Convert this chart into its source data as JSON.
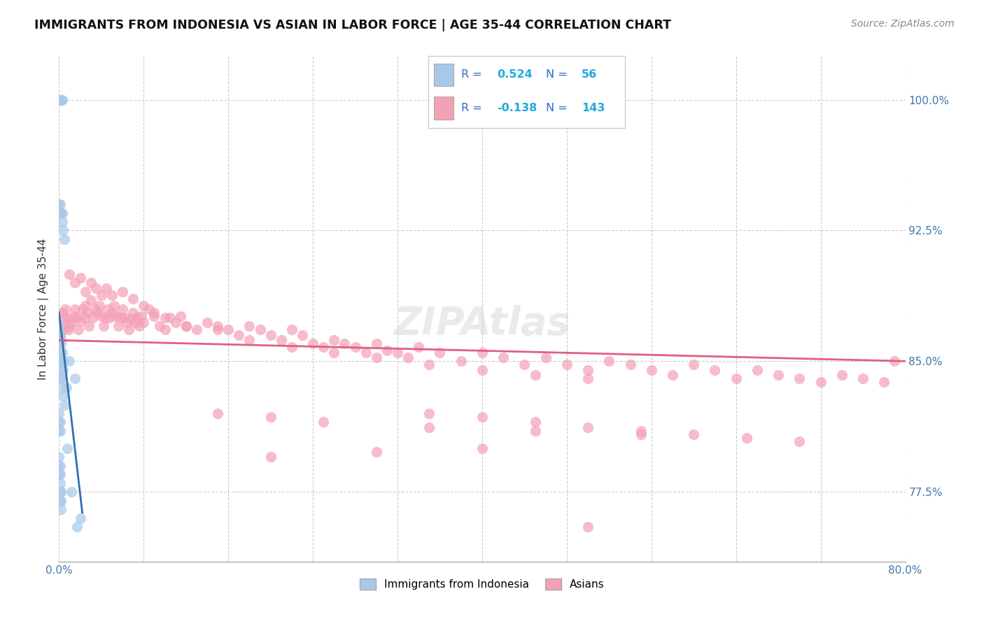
{
  "title": "IMMIGRANTS FROM INDONESIA VS ASIAN IN LABOR FORCE | AGE 35-44 CORRELATION CHART",
  "source": "Source: ZipAtlas.com",
  "ylabel": "In Labor Force | Age 35-44",
  "xlim": [
    0.0,
    0.8
  ],
  "ylim": [
    0.735,
    1.025
  ],
  "xtick_positions": [
    0.0,
    0.08,
    0.16,
    0.24,
    0.32,
    0.4,
    0.48,
    0.56,
    0.64,
    0.72,
    0.8
  ],
  "xtick_labels": [
    "0.0%",
    "",
    "",
    "",
    "",
    "",
    "",
    "",
    "",
    "",
    "80.0%"
  ],
  "ytick_positions": [
    0.775,
    0.85,
    0.925,
    1.0
  ],
  "ytick_labels": [
    "77.5%",
    "85.0%",
    "92.5%",
    "100.0%"
  ],
  "blue_color": "#a8c8e8",
  "pink_color": "#f4a0b5",
  "blue_line_color": "#3070b0",
  "pink_line_color": "#e06080",
  "label1": "Immigrants from Indonesia",
  "label2": "Asians",
  "blue_x": [
    0.0,
    0.0,
    0.0,
    0.001,
    0.001,
    0.001,
    0.002,
    0.002,
    0.003,
    0.0,
    0.001,
    0.001,
    0.002,
    0.003,
    0.003,
    0.004,
    0.005,
    0.0,
    0.0,
    0.001,
    0.002,
    0.002,
    0.003,
    0.004,
    0.004,
    0.0,
    0.001,
    0.001,
    0.002,
    0.002,
    0.003,
    0.004,
    0.005,
    0.0,
    0.0,
    0.0,
    0.001,
    0.001,
    0.0,
    0.0,
    0.0,
    0.001,
    0.001,
    0.001,
    0.001,
    0.001,
    0.002,
    0.002,
    0.002,
    0.007,
    0.008,
    0.01,
    0.012,
    0.015,
    0.017,
    0.02
  ],
  "blue_y": [
    1.0,
    1.0,
    1.0,
    1.0,
    1.0,
    1.0,
    1.0,
    1.0,
    1.0,
    0.94,
    0.94,
    0.935,
    0.935,
    0.935,
    0.93,
    0.925,
    0.92,
    0.87,
    0.865,
    0.865,
    0.86,
    0.855,
    0.855,
    0.85,
    0.845,
    0.85,
    0.85,
    0.845,
    0.84,
    0.84,
    0.835,
    0.83,
    0.825,
    0.82,
    0.815,
    0.81,
    0.815,
    0.81,
    0.795,
    0.79,
    0.785,
    0.79,
    0.785,
    0.78,
    0.775,
    0.77,
    0.775,
    0.77,
    0.765,
    0.835,
    0.8,
    0.85,
    0.775,
    0.84,
    0.755,
    0.76
  ],
  "pink_x": [
    0.0,
    0.001,
    0.002,
    0.003,
    0.003,
    0.004,
    0.005,
    0.006,
    0.008,
    0.009,
    0.01,
    0.012,
    0.014,
    0.015,
    0.016,
    0.018,
    0.02,
    0.022,
    0.024,
    0.025,
    0.026,
    0.028,
    0.03,
    0.032,
    0.034,
    0.036,
    0.038,
    0.04,
    0.042,
    0.044,
    0.046,
    0.048,
    0.05,
    0.052,
    0.054,
    0.056,
    0.058,
    0.06,
    0.062,
    0.064,
    0.066,
    0.068,
    0.07,
    0.072,
    0.074,
    0.076,
    0.078,
    0.08,
    0.085,
    0.09,
    0.095,
    0.1,
    0.105,
    0.11,
    0.115,
    0.12,
    0.13,
    0.14,
    0.15,
    0.16,
    0.17,
    0.18,
    0.19,
    0.2,
    0.21,
    0.22,
    0.23,
    0.24,
    0.25,
    0.26,
    0.27,
    0.28,
    0.29,
    0.3,
    0.31,
    0.32,
    0.33,
    0.34,
    0.36,
    0.38,
    0.4,
    0.42,
    0.44,
    0.46,
    0.48,
    0.5,
    0.52,
    0.54,
    0.56,
    0.58,
    0.6,
    0.62,
    0.64,
    0.66,
    0.68,
    0.7,
    0.72,
    0.74,
    0.76,
    0.78,
    0.79,
    0.01,
    0.015,
    0.02,
    0.025,
    0.03,
    0.035,
    0.04,
    0.045,
    0.05,
    0.06,
    0.07,
    0.08,
    0.09,
    0.1,
    0.12,
    0.15,
    0.18,
    0.22,
    0.26,
    0.3,
    0.35,
    0.4,
    0.45,
    0.5,
    0.35,
    0.4,
    0.45,
    0.5,
    0.55,
    0.6,
    0.65,
    0.7,
    0.15,
    0.2,
    0.25,
    0.35,
    0.45,
    0.55,
    0.4,
    0.3,
    0.2,
    0.5
  ],
  "pink_y": [
    0.86,
    0.865,
    0.862,
    0.87,
    0.878,
    0.868,
    0.875,
    0.88,
    0.875,
    0.868,
    0.87,
    0.872,
    0.876,
    0.88,
    0.875,
    0.868,
    0.873,
    0.88,
    0.875,
    0.882,
    0.878,
    0.87,
    0.885,
    0.875,
    0.88,
    0.878,
    0.882,
    0.876,
    0.87,
    0.875,
    0.88,
    0.875,
    0.878,
    0.882,
    0.876,
    0.87,
    0.875,
    0.88,
    0.875,
    0.872,
    0.868,
    0.874,
    0.878,
    0.872,
    0.875,
    0.87,
    0.876,
    0.872,
    0.88,
    0.876,
    0.87,
    0.868,
    0.875,
    0.872,
    0.876,
    0.87,
    0.868,
    0.872,
    0.87,
    0.868,
    0.865,
    0.87,
    0.868,
    0.865,
    0.862,
    0.868,
    0.865,
    0.86,
    0.858,
    0.862,
    0.86,
    0.858,
    0.855,
    0.86,
    0.856,
    0.855,
    0.852,
    0.858,
    0.855,
    0.85,
    0.855,
    0.852,
    0.848,
    0.852,
    0.848,
    0.845,
    0.85,
    0.848,
    0.845,
    0.842,
    0.848,
    0.845,
    0.84,
    0.845,
    0.842,
    0.84,
    0.838,
    0.842,
    0.84,
    0.838,
    0.85,
    0.9,
    0.895,
    0.898,
    0.89,
    0.895,
    0.892,
    0.888,
    0.892,
    0.888,
    0.89,
    0.886,
    0.882,
    0.878,
    0.875,
    0.87,
    0.868,
    0.862,
    0.858,
    0.855,
    0.852,
    0.848,
    0.845,
    0.842,
    0.84,
    0.82,
    0.818,
    0.815,
    0.812,
    0.81,
    0.808,
    0.806,
    0.804,
    0.82,
    0.818,
    0.815,
    0.812,
    0.81,
    0.808,
    0.8,
    0.798,
    0.795,
    0.755
  ]
}
